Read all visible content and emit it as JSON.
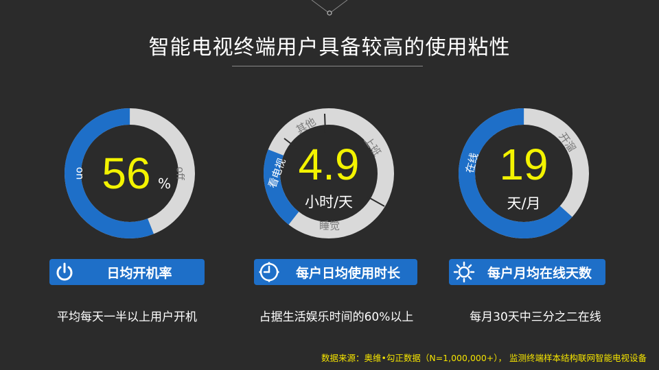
{
  "title": "智能电视终端用户具备较高的使用粘性",
  "chart_data": [
    {
      "type": "pie",
      "center_value": "56",
      "center_unit": "%",
      "segments": [
        {
          "label": "on",
          "value": 56,
          "color": "#1e6fc8"
        },
        {
          "label": "off",
          "value": 44,
          "color": "#d9d9d9"
        }
      ],
      "badge": "日均开机率",
      "badge_icon": "power-icon",
      "description": "平均每天一半以上用户开机"
    },
    {
      "type": "pie",
      "center_value": "4.9",
      "center_unit": "小时/天",
      "segments": [
        {
          "label": "看电视",
          "value": 4.9,
          "color": "#1e6fc8"
        },
        {
          "label": "其他",
          "color": "#d9d9d9"
        },
        {
          "label": "上班",
          "color": "#d9d9d9"
        },
        {
          "label": "睡觉",
          "color": "#d9d9d9"
        }
      ],
      "badge": "每户日均使用时长",
      "badge_icon": "clock-icon",
      "description": "占据生活娱乐时间的60%以上"
    },
    {
      "type": "pie",
      "center_value": "19",
      "center_unit": "天/月",
      "segments": [
        {
          "label": "在线",
          "value": 19,
          "color": "#1e6fc8"
        },
        {
          "label": "开溜",
          "value": 11,
          "color": "#d9d9d9"
        }
      ],
      "badge": "每户月均在线天数",
      "badge_icon": "sun-icon",
      "description": "每月30天中三分之二在线"
    }
  ],
  "source": "数据来源：奥维•勾正数据（N=1,000,000+），  监测终端样本结构联网智能电视设备",
  "colors": {
    "background": "#2b2b2b",
    "accent": "#1e6fc8",
    "ring_rest": "#d9d9d9",
    "highlight": "#f3f300"
  }
}
